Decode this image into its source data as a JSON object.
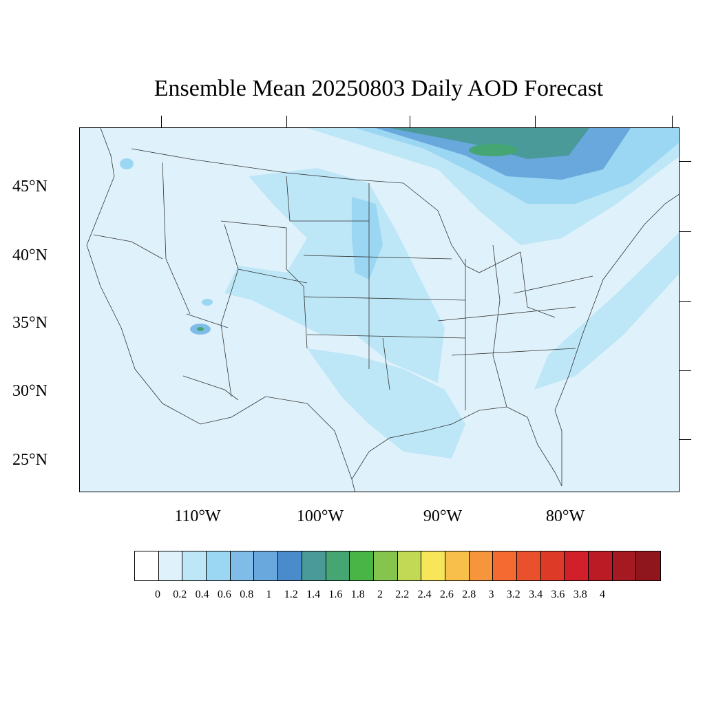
{
  "title": "Ensemble Mean 20250803 Daily AOD Forecast",
  "latitude_labels": [
    "45°N",
    "40°N",
    "35°N",
    "30°N",
    "25°N"
  ],
  "longitude_labels": [
    "110°W",
    "100°W",
    "90°W",
    "80°W"
  ],
  "colorbar": {
    "labels": [
      "0",
      "0.2",
      "0.4",
      "0.6",
      "0.8",
      "1",
      "1.2",
      "1.4",
      "1.6",
      "1.8",
      "2",
      "2.2",
      "2.4",
      "2.6",
      "2.8",
      "3",
      "3.2",
      "3.4",
      "3.6",
      "3.8",
      "4"
    ],
    "colors": [
      "#ffffff",
      "#dff2fb",
      "#bde6f7",
      "#9bd6f2",
      "#7fbde8",
      "#69a8dd",
      "#4a8bcb",
      "#4a9a9a",
      "#46a673",
      "#4ab547",
      "#85c54e",
      "#c2d955",
      "#f7e55a",
      "#f8bf4a",
      "#f7953c",
      "#f46a30",
      "#e9502c",
      "#de3a28",
      "#d12029",
      "#bb1b24",
      "#a51a22",
      "#8f161c"
    ]
  },
  "map": {
    "region": "Contiguous United States",
    "background_color": "#dff2fb",
    "plume_colors": [
      "#bde6f7",
      "#9bd6f2",
      "#7fbde8",
      "#69a8dd",
      "#4a8bcb",
      "#4a9a9a",
      "#46a673"
    ]
  }
}
